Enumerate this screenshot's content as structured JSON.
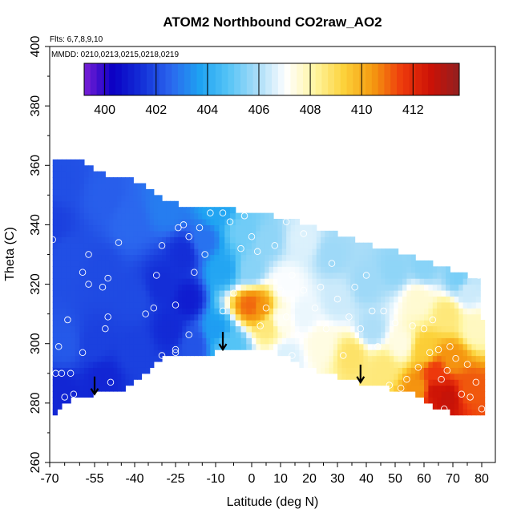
{
  "chart_data": {
    "type": "heatmap",
    "title": "ATOM2 Northbound CO2raw_AO2",
    "annotations": [
      "Flts: 6,7,8,9,10",
      "MMDD: 0210,0213,0215,0218,0219"
    ],
    "xlabel": "Latitude (deg N)",
    "ylabel": "Theta (C)",
    "xlim": [
      -70,
      80
    ],
    "ylim": [
      260,
      400
    ],
    "x_ticks": [
      "-70",
      "-55",
      "-40",
      "-25",
      "-10",
      "0",
      "10",
      "20",
      "30",
      "40",
      "50",
      "60",
      "70",
      "80"
    ],
    "x_tick_values": [
      -70,
      -55,
      -40,
      -25,
      -10,
      0,
      10,
      20,
      30,
      40,
      50,
      60,
      70,
      80
    ],
    "x_minor_ticks": [
      -65,
      -60,
      -50,
      -45,
      -35,
      -30,
      -20,
      -15,
      -5,
      5,
      15,
      25,
      35,
      45,
      55,
      65,
      75
    ],
    "y_ticks": [
      "260",
      "280",
      "300",
      "320",
      "340",
      "360",
      "380",
      "400"
    ],
    "y_tick_values": [
      260,
      280,
      300,
      320,
      340,
      360,
      380,
      400
    ],
    "colorbar": {
      "ticks": [
        "400",
        "402",
        "404",
        "406",
        "408",
        "410",
        "412"
      ],
      "tick_values": [
        400,
        402,
        404,
        406,
        408,
        410,
        412
      ],
      "range": [
        399.2,
        413.8
      ],
      "colors": [
        "#7a1fd6",
        "#0a00c4",
        "#1430d8",
        "#2b66ee",
        "#1ea2f2",
        "#55c4f6",
        "#a8dcf8",
        "#ffffff",
        "#fff5a0",
        "#fcd23a",
        "#f59a10",
        "#ee3a0c",
        "#cc1206",
        "#922020"
      ]
    },
    "coverage": {
      "upper": [
        [
          -69,
          362
        ],
        [
          -62,
          362
        ],
        [
          -58,
          361
        ],
        [
          -54,
          358
        ],
        [
          -47,
          356
        ],
        [
          -40,
          355
        ],
        [
          -34,
          352
        ],
        [
          -30,
          349
        ],
        [
          -24,
          347
        ],
        [
          -18,
          346
        ],
        [
          -12,
          345
        ],
        [
          -5,
          345
        ],
        [
          2,
          344
        ],
        [
          8,
          343
        ],
        [
          14,
          342
        ],
        [
          20,
          340
        ],
        [
          26,
          338
        ],
        [
          30,
          337
        ],
        [
          36,
          335
        ],
        [
          42,
          333
        ],
        [
          48,
          332
        ],
        [
          54,
          330
        ],
        [
          60,
          328
        ],
        [
          66,
          326
        ],
        [
          72,
          324
        ],
        [
          79,
          322
        ],
        [
          79.5,
          307
        ],
        [
          80,
          300
        ]
      ],
      "lower": [
        [
          -69,
          276
        ],
        [
          -65,
          280
        ],
        [
          -60,
          282
        ],
        [
          -55,
          283
        ],
        [
          -50,
          284
        ],
        [
          -44,
          285
        ],
        [
          -36,
          290
        ],
        [
          -30,
          295
        ],
        [
          -20,
          296
        ],
        [
          -10,
          297
        ],
        [
          0,
          299
        ],
        [
          8,
          298
        ],
        [
          16,
          293
        ],
        [
          25,
          290
        ],
        [
          34,
          288
        ],
        [
          42,
          286
        ],
        [
          48,
          285
        ],
        [
          55,
          284
        ],
        [
          59,
          282
        ],
        [
          64,
          278
        ],
        [
          69,
          277
        ],
        [
          74,
          276
        ],
        [
          80,
          276
        ],
        [
          80.5,
          280
        ],
        [
          80,
          300
        ]
      ]
    },
    "field_anchors": [
      {
        "lat": -69,
        "theta": 340,
        "co2": 401.8
      },
      {
        "lat": -65,
        "theta": 355,
        "co2": 402.1
      },
      {
        "lat": -64,
        "theta": 330,
        "co2": 402.1
      },
      {
        "lat": -65,
        "theta": 300,
        "co2": 402.3
      },
      {
        "lat": -66,
        "theta": 283,
        "co2": 401.2
      },
      {
        "lat": -52,
        "theta": 350,
        "co2": 402.4
      },
      {
        "lat": -52,
        "theta": 325,
        "co2": 402.0
      },
      {
        "lat": -55,
        "theta": 300,
        "co2": 401.8
      },
      {
        "lat": -52,
        "theta": 288,
        "co2": 401.2
      },
      {
        "lat": -42,
        "theta": 340,
        "co2": 402.6
      },
      {
        "lat": -40,
        "theta": 315,
        "co2": 402.0
      },
      {
        "lat": -40,
        "theta": 298,
        "co2": 401.8
      },
      {
        "lat": -30,
        "theta": 320,
        "co2": 401.4
      },
      {
        "lat": -27,
        "theta": 305,
        "co2": 401.3
      },
      {
        "lat": -22,
        "theta": 330,
        "co2": 401.4
      },
      {
        "lat": -20,
        "theta": 315,
        "co2": 401.0
      },
      {
        "lat": -28,
        "theta": 345,
        "co2": 403.0
      },
      {
        "lat": -18,
        "theta": 300,
        "co2": 402.2
      },
      {
        "lat": -14,
        "theta": 335,
        "co2": 402.8
      },
      {
        "lat": -10,
        "theta": 345,
        "co2": 403.8
      },
      {
        "lat": -8,
        "theta": 325,
        "co2": 403.8
      },
      {
        "lat": -10,
        "theta": 305,
        "co2": 403.6
      },
      {
        "lat": -6,
        "theta": 300,
        "co2": 404.8
      },
      {
        "lat": -2,
        "theta": 338,
        "co2": 405.2
      },
      {
        "lat": 5,
        "theta": 335,
        "co2": 405.6
      },
      {
        "lat": 0,
        "theta": 325,
        "co2": 405.5
      },
      {
        "lat": 0,
        "theta": 313,
        "co2": 411.0
      },
      {
        "lat": 3,
        "theta": 312,
        "co2": 410.5
      },
      {
        "lat": 6,
        "theta": 306,
        "co2": 408.6
      },
      {
        "lat": 10,
        "theta": 308,
        "co2": 407.2
      },
      {
        "lat": 12,
        "theta": 320,
        "co2": 407.0
      },
      {
        "lat": 12,
        "theta": 296,
        "co2": 406.6
      },
      {
        "lat": 18,
        "theta": 335,
        "co2": 406.6
      },
      {
        "lat": 18,
        "theta": 310,
        "co2": 406.8
      },
      {
        "lat": 24,
        "theta": 300,
        "co2": 407.4
      },
      {
        "lat": 28,
        "theta": 330,
        "co2": 405.8
      },
      {
        "lat": 30,
        "theta": 315,
        "co2": 406.4
      },
      {
        "lat": 35,
        "theta": 296,
        "co2": 408.8
      },
      {
        "lat": 40,
        "theta": 320,
        "co2": 405.8
      },
      {
        "lat": 42,
        "theta": 305,
        "co2": 406.0
      },
      {
        "lat": 46,
        "theta": 292,
        "co2": 408.6
      },
      {
        "lat": 50,
        "theta": 325,
        "co2": 405.6
      },
      {
        "lat": 52,
        "theta": 300,
        "co2": 407.4
      },
      {
        "lat": 58,
        "theta": 315,
        "co2": 407.6
      },
      {
        "lat": 60,
        "theta": 298,
        "co2": 409.4
      },
      {
        "lat": 58,
        "theta": 285,
        "co2": 410.5
      },
      {
        "lat": 64,
        "theta": 284,
        "co2": 412.6
      },
      {
        "lat": 68,
        "theta": 282,
        "co2": 412.8
      },
      {
        "lat": 64,
        "theta": 290,
        "co2": 411.6
      },
      {
        "lat": 70,
        "theta": 295,
        "co2": 410.5
      },
      {
        "lat": 68,
        "theta": 310,
        "co2": 408.6
      },
      {
        "lat": 75,
        "theta": 318,
        "co2": 406.4
      },
      {
        "lat": 78,
        "theta": 305,
        "co2": 407.8
      },
      {
        "lat": 76,
        "theta": 285,
        "co2": 411.2
      },
      {
        "lat": 60,
        "theta": 326,
        "co2": 405.5
      },
      {
        "lat": 72,
        "theta": 322,
        "co2": 405.3
      }
    ],
    "sample_points": [
      [
        -69,
        335
      ],
      [
        -67,
        299
      ],
      [
        -68,
        290
      ],
      [
        -66,
        290
      ],
      [
        -65,
        282
      ],
      [
        -63,
        290
      ],
      [
        -62,
        283
      ],
      [
        -64,
        308
      ],
      [
        -57,
        330
      ],
      [
        -59,
        324
      ],
      [
        -59,
        297
      ],
      [
        -57,
        320
      ],
      [
        -52,
        319
      ],
      [
        -50,
        322
      ],
      [
        -50,
        309
      ],
      [
        -51,
        305
      ],
      [
        -46,
        334
      ],
      [
        -49,
        287
      ],
      [
        -36,
        310
      ],
      [
        -32,
        323
      ],
      [
        -33,
        312
      ],
      [
        -30,
        333
      ],
      [
        -30,
        296
      ],
      [
        -25,
        298
      ],
      [
        -25,
        297
      ],
      [
        -24,
        339
      ],
      [
        -22,
        340
      ],
      [
        -20,
        336
      ],
      [
        -25,
        313
      ],
      [
        -20,
        303
      ],
      [
        -16,
        339
      ],
      [
        -18,
        324
      ],
      [
        -14,
        330
      ],
      [
        -12,
        344
      ],
      [
        -8,
        344
      ],
      [
        -6,
        341
      ],
      [
        -5,
        317
      ],
      [
        -3,
        332
      ],
      [
        -8,
        311
      ],
      [
        -2,
        343
      ],
      [
        0,
        336
      ],
      [
        2,
        331
      ],
      [
        3,
        306
      ],
      [
        5,
        312
      ],
      [
        8,
        333
      ],
      [
        10,
        318
      ],
      [
        12,
        341
      ],
      [
        14,
        323
      ],
      [
        12,
        309
      ],
      [
        14,
        296
      ],
      [
        16,
        303
      ],
      [
        18,
        337
      ],
      [
        18,
        318
      ],
      [
        20,
        343
      ],
      [
        22,
        312
      ],
      [
        24,
        319
      ],
      [
        26,
        305
      ],
      [
        28,
        327
      ],
      [
        30,
        315
      ],
      [
        32,
        296
      ],
      [
        34,
        309
      ],
      [
        36,
        319
      ],
      [
        38,
        305
      ],
      [
        40,
        323
      ],
      [
        42,
        311
      ],
      [
        44,
        299
      ],
      [
        46,
        311
      ],
      [
        48,
        286
      ],
      [
        50,
        307
      ],
      [
        52,
        285
      ],
      [
        54,
        288
      ],
      [
        56,
        306
      ],
      [
        58,
        292
      ],
      [
        60,
        305
      ],
      [
        62,
        297
      ],
      [
        63,
        308
      ],
      [
        65,
        298
      ],
      [
        66,
        288
      ],
      [
        67,
        278
      ],
      [
        68,
        291
      ],
      [
        69,
        299
      ],
      [
        71,
        295
      ],
      [
        73,
        283
      ],
      [
        75,
        293
      ],
      [
        76,
        282
      ],
      [
        78,
        287
      ],
      [
        79,
        323
      ],
      [
        80,
        278
      ]
    ],
    "markers": [
      {
        "lat": -55,
        "theta": 283
      },
      {
        "lat": -8,
        "theta": 298
      },
      {
        "lat": 38,
        "theta": 287
      }
    ]
  }
}
